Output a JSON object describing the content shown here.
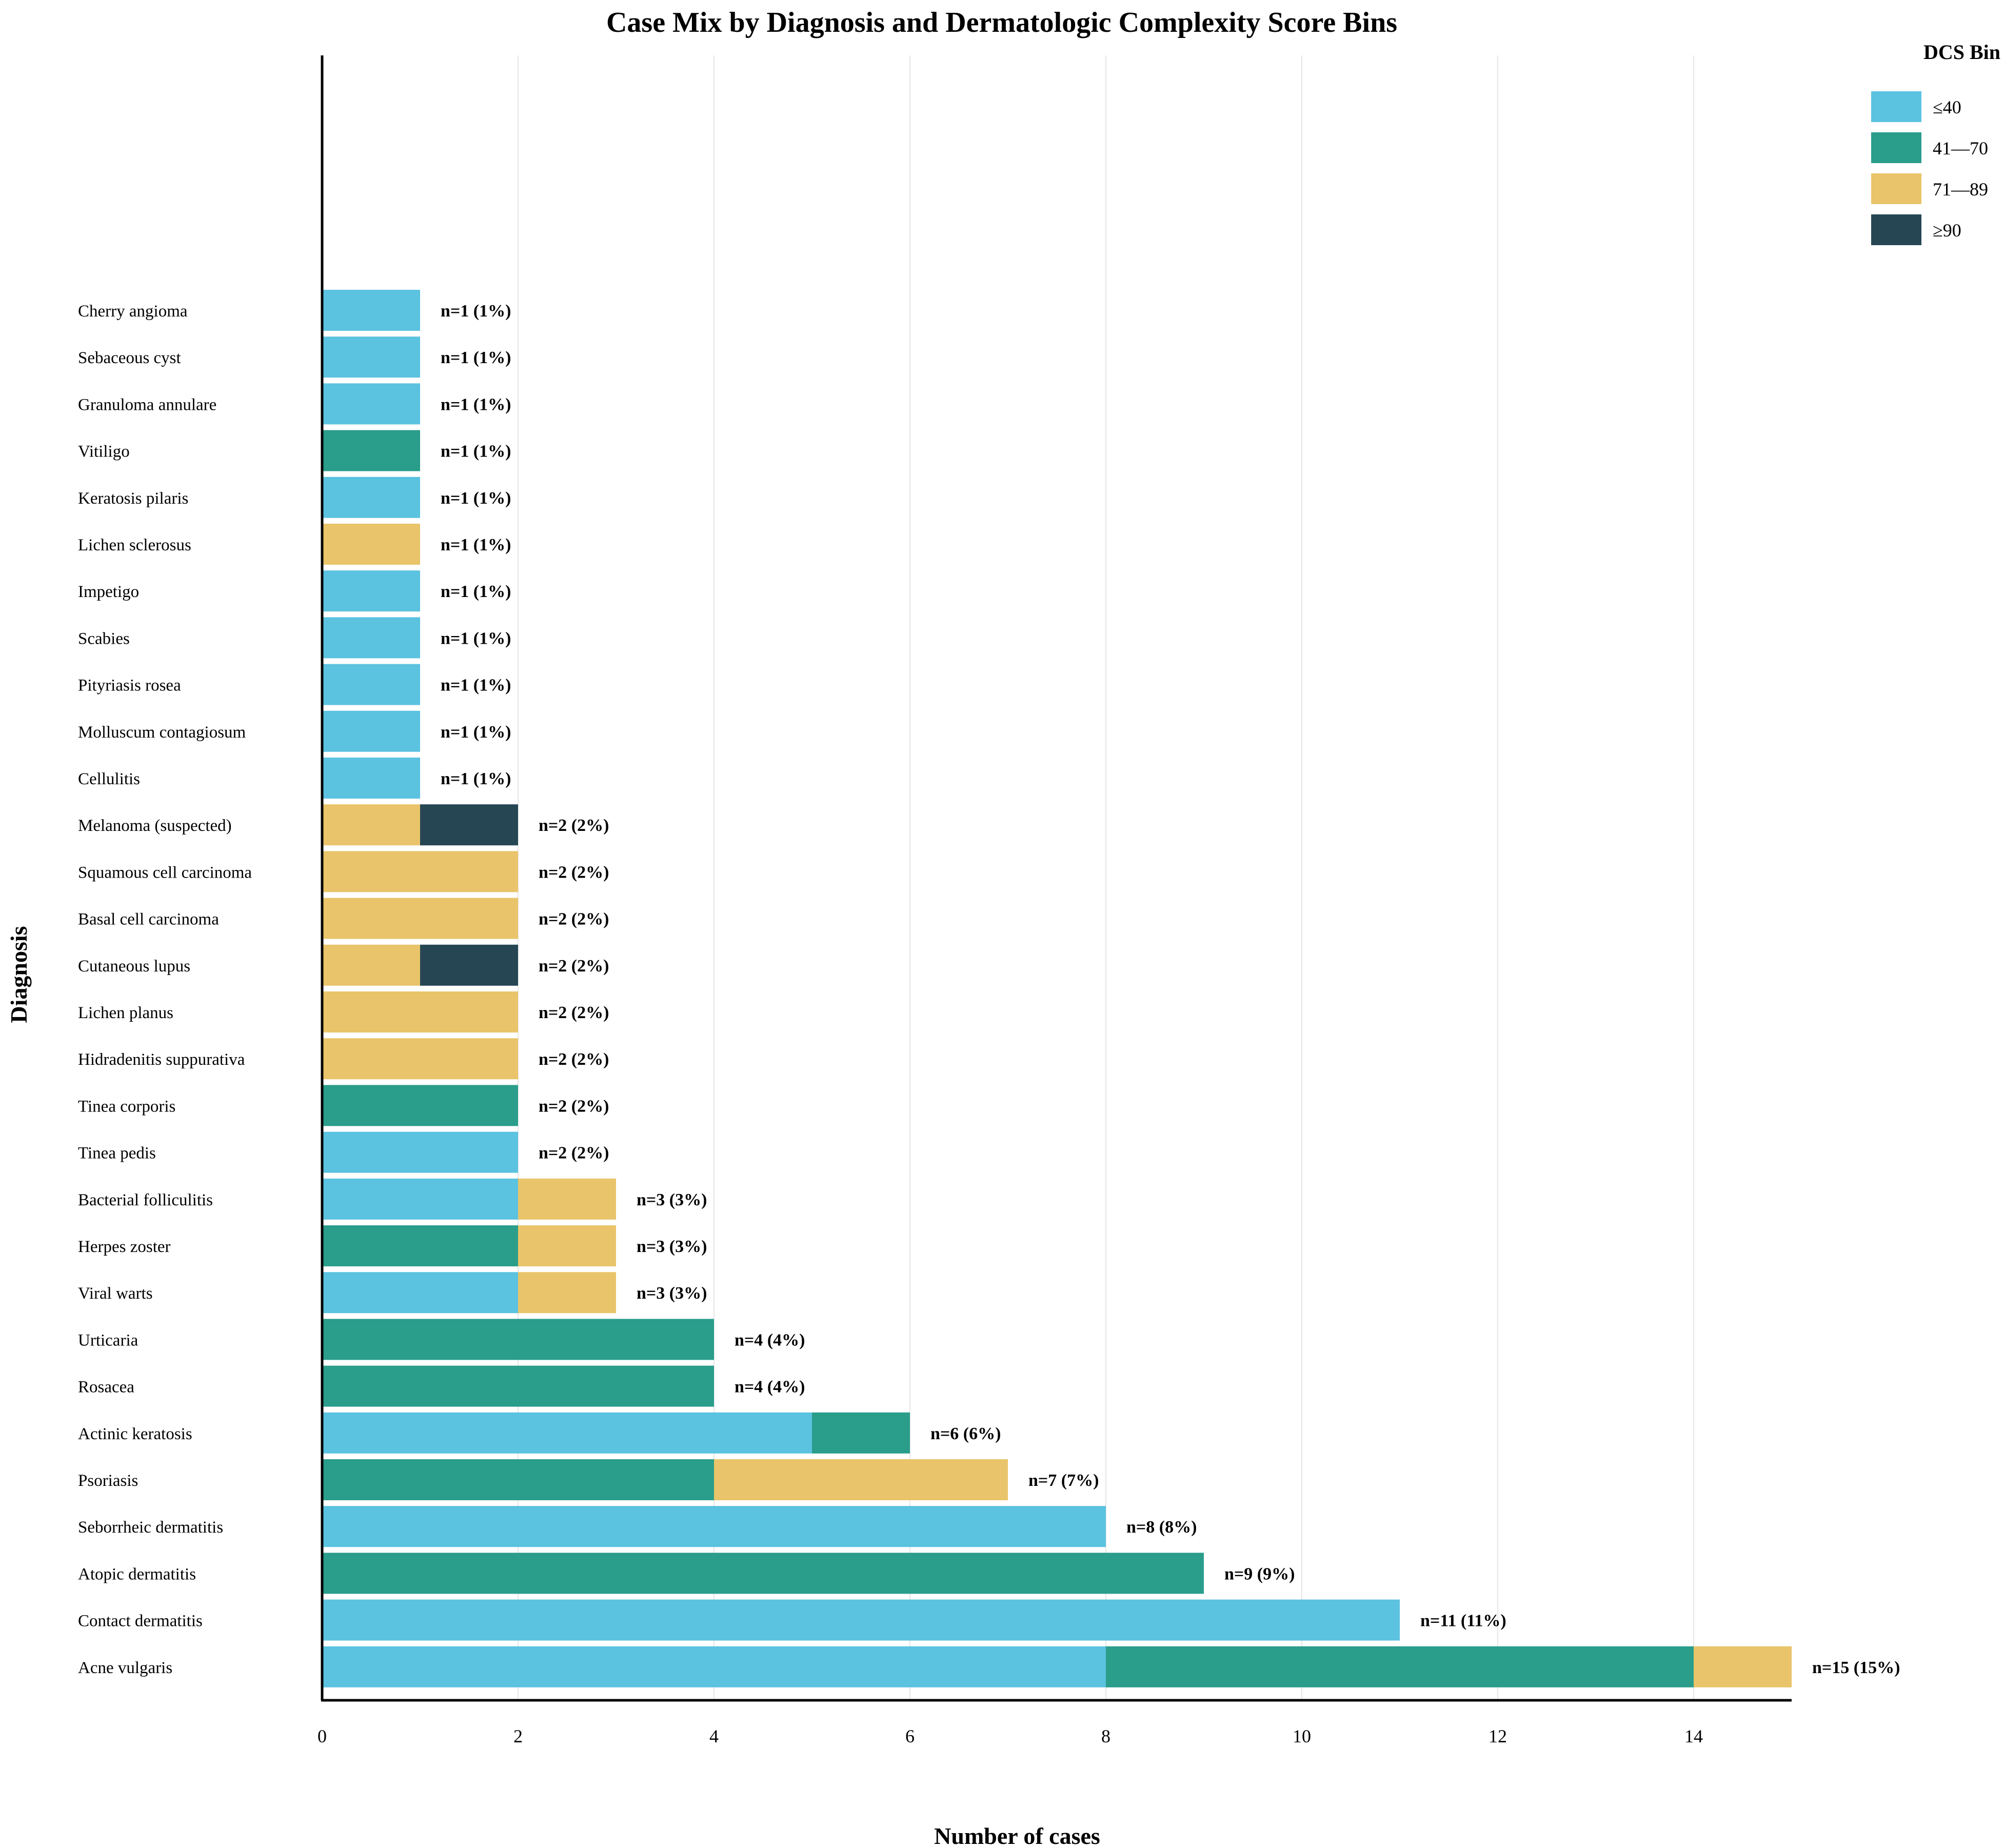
{
  "chart_data": {
    "type": "bar",
    "orientation": "horizontal",
    "stacked": true,
    "title": "Case Mix by Diagnosis and Dermatologic Complexity Score Bins",
    "xlabel": "Number of cases",
    "ylabel": "Diagnosis",
    "xlim": [
      0,
      15
    ],
    "xticks": [
      "0",
      "2",
      "4",
      "6",
      "8",
      "10",
      "12",
      "14"
    ],
    "grid": "vertical",
    "legend": {
      "title": "DCS Bin",
      "placement": "top-right"
    },
    "categories": [
      "Cherry angioma",
      "Sebaceous cyst",
      "Granuloma annulare",
      "Vitiligo",
      "Keratosis pilaris",
      "Lichen sclerosus",
      "Impetigo",
      "Scabies",
      "Pityriasis rosea",
      "Molluscum contagiosum",
      "Cellulitis",
      "Melanoma (suspected)",
      "Squamous cell carcinoma",
      "Basal cell carcinoma",
      "Cutaneous lupus",
      "Lichen planus",
      "Hidradenitis suppurativa",
      "Tinea corporis",
      "Tinea pedis",
      "Bacterial folliculitis",
      "Herpes zoster",
      "Viral warts",
      "Urticaria",
      "Rosacea",
      "Actinic keratosis",
      "Psoriasis",
      "Seborrheic dermatitis",
      "Atopic dermatitis",
      "Contact dermatitis",
      "Acne vulgaris"
    ],
    "series": [
      {
        "name": "≤40",
        "color": "#5BC2E0",
        "values": [
          1,
          1,
          1,
          0,
          1,
          0,
          1,
          1,
          1,
          1,
          1,
          0,
          0,
          0,
          0,
          0,
          0,
          0,
          2,
          2,
          0,
          2,
          0,
          0,
          5,
          0,
          8,
          0,
          11,
          8
        ]
      },
      {
        "name": "41—70",
        "color": "#2A9D8B",
        "values": [
          0,
          0,
          0,
          1,
          0,
          0,
          0,
          0,
          0,
          0,
          0,
          0,
          0,
          0,
          0,
          0,
          0,
          2,
          0,
          0,
          2,
          0,
          4,
          4,
          1,
          4,
          0,
          9,
          0,
          6
        ]
      },
      {
        "name": "71—89",
        "color": "#E9C46A",
        "values": [
          0,
          0,
          0,
          0,
          0,
          1,
          0,
          0,
          0,
          0,
          0,
          1,
          2,
          2,
          1,
          2,
          2,
          0,
          0,
          1,
          1,
          1,
          0,
          0,
          0,
          3,
          0,
          0,
          0,
          1
        ]
      },
      {
        "name": "≥90",
        "color": "#264654",
        "values": [
          0,
          0,
          0,
          0,
          0,
          0,
          0,
          0,
          0,
          0,
          0,
          1,
          0,
          0,
          1,
          0,
          0,
          0,
          0,
          0,
          0,
          0,
          0,
          0,
          0,
          0,
          0,
          0,
          0,
          0
        ]
      }
    ],
    "totals": [
      1,
      1,
      1,
      1,
      1,
      1,
      1,
      1,
      1,
      1,
      1,
      2,
      2,
      2,
      2,
      2,
      2,
      2,
      2,
      3,
      3,
      3,
      4,
      4,
      6,
      7,
      8,
      9,
      11,
      15
    ],
    "data_labels": [
      "n=1 (1%)",
      "n=1 (1%)",
      "n=1 (1%)",
      "n=1 (1%)",
      "n=1 (1%)",
      "n=1 (1%)",
      "n=1 (1%)",
      "n=1 (1%)",
      "n=1 (1%)",
      "n=1 (1%)",
      "n=1 (1%)",
      "n=2 (2%)",
      "n=2 (2%)",
      "n=2 (2%)",
      "n=2 (2%)",
      "n=2 (2%)",
      "n=2 (2%)",
      "n=2 (2%)",
      "n=2 (2%)",
      "n=3 (3%)",
      "n=3 (3%)",
      "n=3 (3%)",
      "n=4 (4%)",
      "n=4 (4%)",
      "n=6 (6%)",
      "n=7 (7%)",
      "n=8 (8%)",
      "n=9 (9%)",
      "n=11 (11%)",
      "n=15 (15%)"
    ]
  }
}
